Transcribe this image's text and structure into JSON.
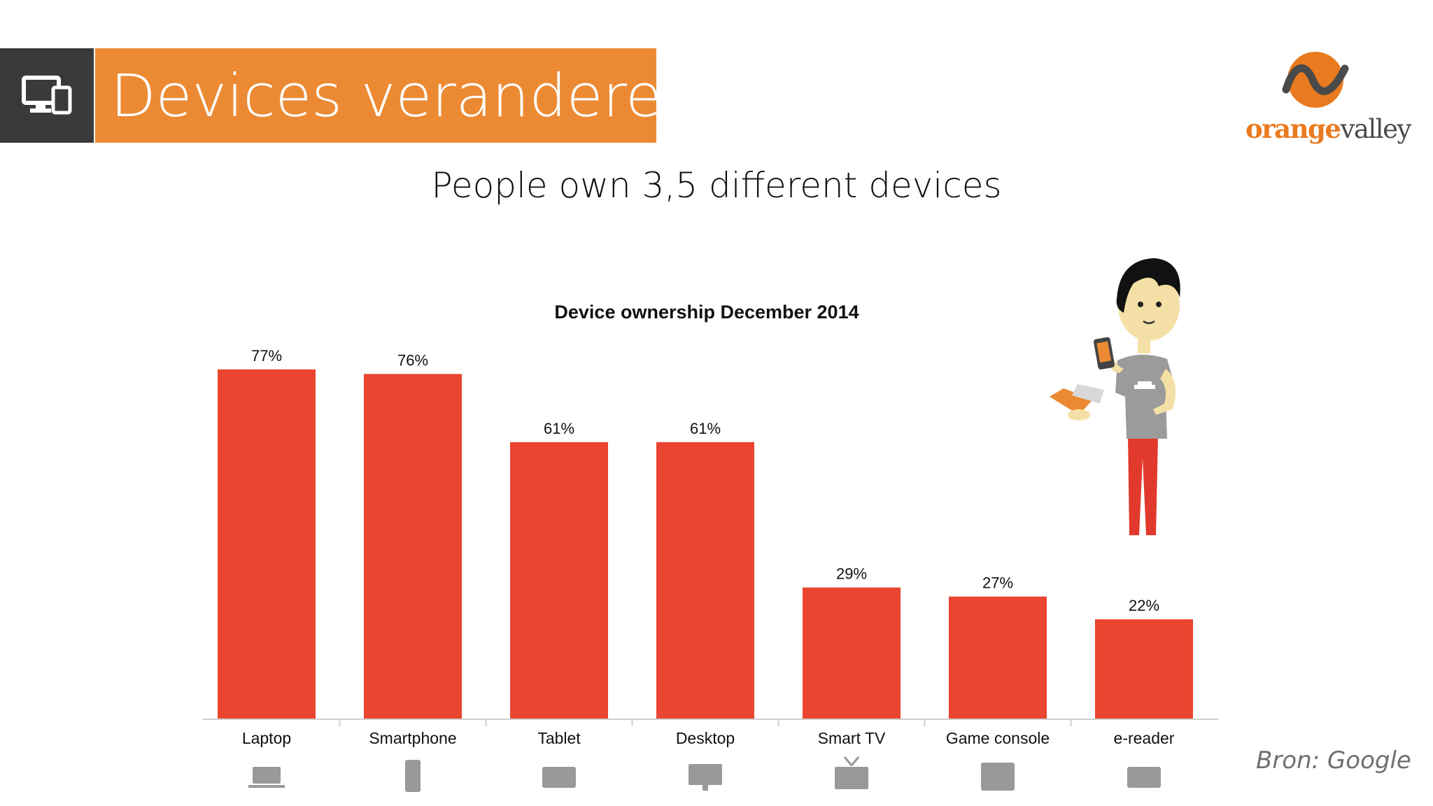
{
  "header": {
    "title": "Devices veranderen",
    "icon": "devices-icon",
    "accent_color": "#ec8a33",
    "dark_color": "#3a3a3a"
  },
  "logo": {
    "bold": "orange",
    "rest": "valley",
    "color": "#ea7a1f"
  },
  "subtitle": "People own 3,5 different devices",
  "chart_data": {
    "type": "bar",
    "title": "Device ownership December 2014",
    "categories": [
      "Laptop",
      "Smartphone",
      "Tablet",
      "Desktop",
      "Smart TV",
      "Game console",
      "e-reader"
    ],
    "values": [
      77,
      76,
      61,
      61,
      29,
      27,
      22
    ],
    "value_labels": [
      "77%",
      "76%",
      "61%",
      "61%",
      "29%",
      "27%",
      "22%"
    ],
    "category_icons": [
      "laptop-icon",
      "smartphone-icon",
      "tablet-icon",
      "desktop-icon",
      "smart-tv-icon",
      "game-console-icon",
      "e-reader-icon"
    ],
    "unit": "%",
    "ylim": [
      0,
      77
    ],
    "bar_color": "#ea4530",
    "grid": false,
    "legend": "none"
  },
  "source": "Bron: Google"
}
